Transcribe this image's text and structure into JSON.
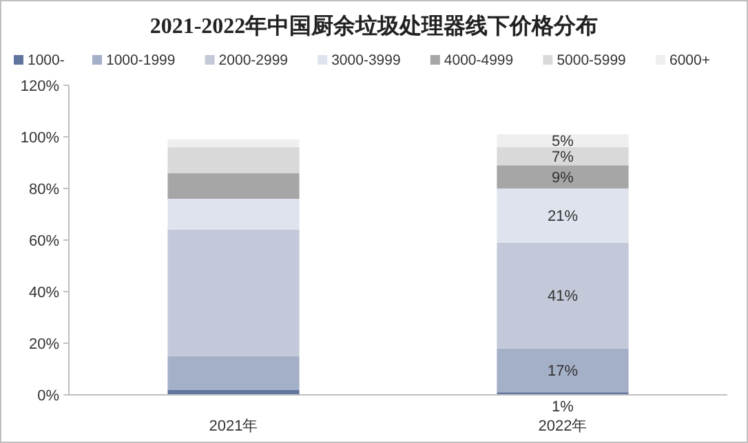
{
  "chart_data": {
    "type": "bar",
    "title": "2021-2022年中国厨余垃圾处理器线下价格分布",
    "categories": [
      "2021年",
      "2022年"
    ],
    "stacked": true,
    "legend": "top",
    "grid": false,
    "ylim": [
      0,
      120
    ],
    "yticks": [
      {
        "value": 0,
        "label": "0%"
      },
      {
        "value": 20,
        "label": "20%"
      },
      {
        "value": 40,
        "label": "40%"
      },
      {
        "value": 60,
        "label": "60%"
      },
      {
        "value": 80,
        "label": "80%"
      },
      {
        "value": 100,
        "label": "100%"
      },
      {
        "value": 120,
        "label": "120%"
      }
    ],
    "series": [
      {
        "name": "1000-",
        "color": "#62759f",
        "values": [
          2,
          1
        ],
        "value_labels": [
          null,
          "1%"
        ]
      },
      {
        "name": "1000-1999",
        "color": "#a4afc8",
        "values": [
          13,
          17
        ],
        "value_labels": [
          null,
          "17%"
        ]
      },
      {
        "name": "2000-2999",
        "color": "#c3c9d9",
        "values": [
          49,
          41
        ],
        "value_labels": [
          null,
          "41%"
        ]
      },
      {
        "name": "3000-3999",
        "color": "#dfe3ed",
        "values": [
          12,
          21
        ],
        "value_labels": [
          null,
          "21%"
        ]
      },
      {
        "name": "4000-4999",
        "color": "#a6a6a6",
        "values": [
          10,
          9
        ],
        "value_labels": [
          null,
          "9%"
        ]
      },
      {
        "name": "5000-5999",
        "color": "#d9d9d9",
        "values": [
          10,
          7
        ],
        "value_labels": [
          null,
          "7%"
        ]
      },
      {
        "name": "6000+",
        "color": "#efefef",
        "values": [
          3,
          5
        ],
        "value_labels": [
          null,
          "5%"
        ]
      }
    ]
  }
}
